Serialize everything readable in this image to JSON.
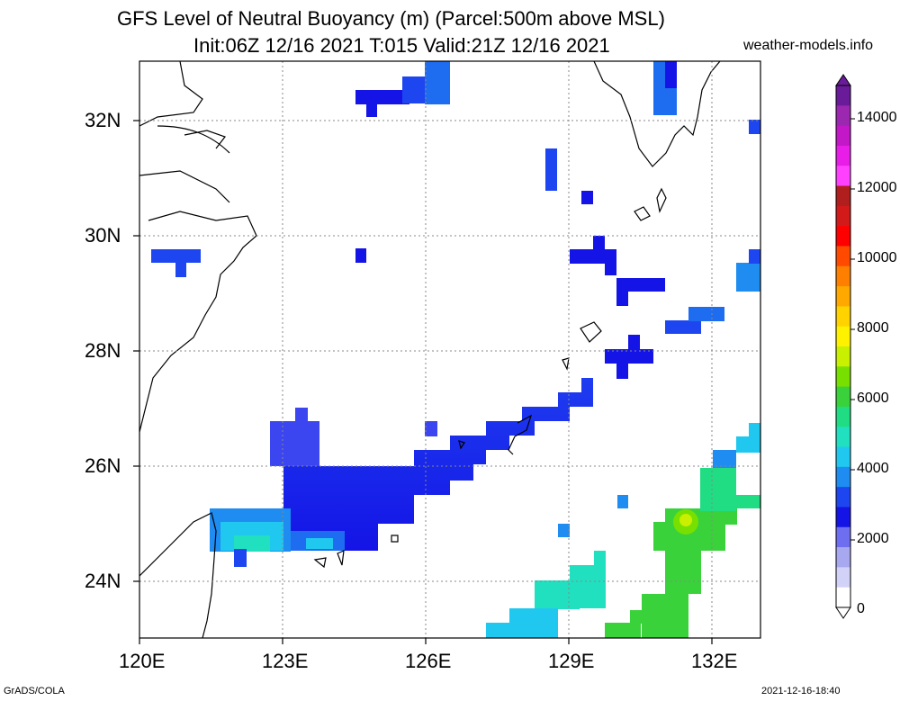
{
  "title_line1": "GFS Level of Neutral Buoyancy (m) (Parcel:500m above MSL)",
  "title_line2": "Init:06Z 12/16 2021 T:015 Valid:21Z 12/16 2021",
  "source": "weather-models.info",
  "footer_left": "GrADS/COLA",
  "footer_right": "2021-12-16-18:40",
  "lon_labels": [
    "120E",
    "123E",
    "126E",
    "129E",
    "132E"
  ],
  "lat_labels": [
    "32N",
    "30N",
    "28N",
    "26N",
    "24N"
  ],
  "colorbar_labels": [
    "14000",
    "12000",
    "10000",
    "8000",
    "6000",
    "4000",
    "2000",
    "0"
  ],
  "colorbar_colors": [
    "#6a1b9a",
    "#9c27b0",
    "#c218c8",
    "#e81ee8",
    "#ff40ff",
    "#b01e1e",
    "#d21a1a",
    "#ff0000",
    "#ff4a00",
    "#ff7f00",
    "#ffa800",
    "#ffd200",
    "#fff200",
    "#c8f000",
    "#78e000",
    "#3ad23a",
    "#20dc82",
    "#20e0c0",
    "#20c8f0",
    "#1e8cf0",
    "#1e46f0",
    "#1414e6",
    "#6e6ef0",
    "#a8a8f0",
    "#d2d2f8",
    "#ffffff"
  ]
}
